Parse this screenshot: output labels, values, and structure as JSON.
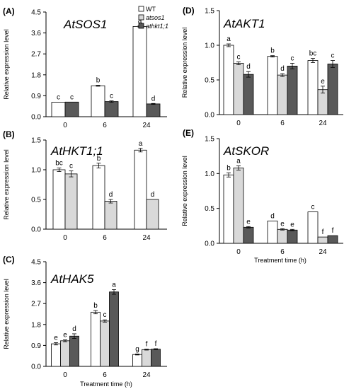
{
  "figure": {
    "series_colors": [
      "#ffffff",
      "#d9d9d9",
      "#595959"
    ]
  },
  "chart_data": [
    {
      "type": "bar",
      "panel_label": "(A)",
      "title": "AtSOS1",
      "xlabel": "",
      "ylabel": "Relative expression level",
      "categories": [
        "0",
        "6",
        "24"
      ],
      "ylim": [
        0,
        4.5
      ],
      "yticks": [
        "0.0",
        "0.9",
        "1.8",
        "2.7",
        "3.6",
        "4.5"
      ],
      "legend": {
        "position": "top-right",
        "entries": [
          "WT",
          "atsos1",
          "athkt1;1"
        ]
      },
      "series": [
        {
          "name": "WT",
          "values": [
            0.62,
            1.33,
            3.88
          ],
          "errors": [
            0.0,
            0.02,
            0.03
          ],
          "letters": [
            "c",
            "b",
            "a"
          ]
        },
        {
          "name": "atsos1",
          "values": null,
          "errors": null,
          "letters": null
        },
        {
          "name": "athkt1;1",
          "values": [
            0.63,
            0.65,
            0.55
          ],
          "errors": [
            0.0,
            0.03,
            0.02
          ],
          "letters": [
            "c",
            "c",
            "d"
          ]
        }
      ]
    },
    {
      "type": "bar",
      "panel_label": "(B)",
      "title": "AtHKT1;1",
      "xlabel": "",
      "ylabel": "Relative expression level",
      "categories": [
        "0",
        "6",
        "24"
      ],
      "ylim": [
        0,
        1.5
      ],
      "yticks": [
        "0.0",
        "0.5",
        "1.0",
        "1.5"
      ],
      "series": [
        {
          "name": "WT",
          "values": [
            1.0,
            1.07,
            1.33
          ],
          "errors": [
            0.03,
            0.04,
            0.03
          ],
          "letters": [
            "bc",
            "b",
            "a"
          ]
        },
        {
          "name": "atsos1",
          "values": [
            0.93,
            0.47,
            0.5
          ],
          "errors": [
            0.05,
            0.03,
            0.0
          ],
          "letters": [
            "c",
            "d",
            "d"
          ]
        },
        {
          "name": "athkt1;1",
          "values": null,
          "errors": null,
          "letters": null
        }
      ]
    },
    {
      "type": "bar",
      "panel_label": "(C)",
      "title": "AtHAK5",
      "xlabel": "Treatment time (h)",
      "ylabel": "Relative expression level",
      "categories": [
        "0",
        "6",
        "24"
      ],
      "ylim": [
        0,
        4.5
      ],
      "yticks": [
        "0.0",
        "0.9",
        "1.8",
        "2.7",
        "3.6",
        "4.5"
      ],
      "series": [
        {
          "name": "WT",
          "values": [
            0.97,
            2.33,
            0.51
          ],
          "errors": [
            0.05,
            0.07,
            0.02
          ],
          "letters": [
            "e",
            "b",
            "g"
          ]
        },
        {
          "name": "atsos1",
          "values": [
            1.1,
            1.95,
            0.72
          ],
          "errors": [
            0.04,
            0.05,
            0.02
          ],
          "letters": [
            "e",
            "c",
            "f"
          ]
        },
        {
          "name": "athkt1;1",
          "values": [
            1.3,
            3.2,
            0.74
          ],
          "errors": [
            0.1,
            0.1,
            0.02
          ],
          "letters": [
            "d",
            "a",
            "f"
          ]
        }
      ]
    },
    {
      "type": "bar",
      "panel_label": "(D)",
      "title": "AtAKT1",
      "xlabel": "",
      "ylabel": "Relative expression level",
      "categories": [
        "0",
        "6",
        "24"
      ],
      "ylim": [
        0,
        1.5
      ],
      "yticks": [
        "0.0",
        "0.5",
        "1.0",
        "1.5"
      ],
      "series": [
        {
          "name": "WT",
          "values": [
            1.0,
            0.84,
            0.78
          ],
          "errors": [
            0.02,
            0.01,
            0.03
          ],
          "letters": [
            "a",
            "b",
            "bc"
          ]
        },
        {
          "name": "atsos1",
          "values": [
            0.74,
            0.57,
            0.36
          ],
          "errors": [
            0.02,
            0.02,
            0.05
          ],
          "letters": [
            "c",
            "d",
            "e"
          ]
        },
        {
          "name": "athkt1;1",
          "values": [
            0.58,
            0.7,
            0.73
          ],
          "errors": [
            0.04,
            0.04,
            0.05
          ],
          "letters": [
            "d",
            "c",
            "c"
          ]
        }
      ]
    },
    {
      "type": "bar",
      "panel_label": "(E)",
      "title": "AtSKOR",
      "xlabel": "Treatment time (h)",
      "ylabel": "Relative expression level",
      "categories": [
        "0",
        "6",
        "24"
      ],
      "ylim": [
        0,
        1.5
      ],
      "yticks": [
        "0.0",
        "0.5",
        "1.0",
        "1.5"
      ],
      "series": [
        {
          "name": "WT",
          "values": [
            0.98,
            0.32,
            0.45
          ],
          "errors": [
            0.03,
            0.0,
            0.0
          ],
          "letters": [
            "b",
            "d",
            "c"
          ]
        },
        {
          "name": "atsos1",
          "values": [
            1.08,
            0.2,
            0.09
          ],
          "errors": [
            0.03,
            0.01,
            0.0
          ],
          "letters": [
            "a",
            "e",
            "f"
          ]
        },
        {
          "name": "athkt1;1",
          "values": [
            0.23,
            0.19,
            0.11
          ],
          "errors": [
            0.01,
            0.01,
            0.0
          ],
          "letters": [
            "e",
            "e",
            "f"
          ]
        }
      ]
    }
  ]
}
